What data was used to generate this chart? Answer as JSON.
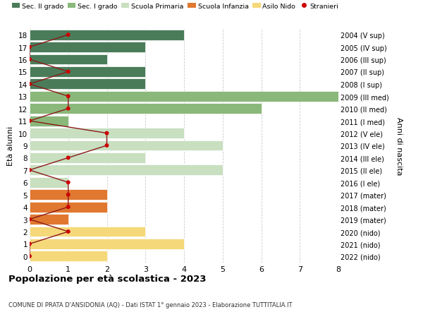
{
  "ages": [
    18,
    17,
    16,
    15,
    14,
    13,
    12,
    11,
    10,
    9,
    8,
    7,
    6,
    5,
    4,
    3,
    2,
    1,
    0
  ],
  "right_labels": [
    "2004 (V sup)",
    "2005 (IV sup)",
    "2006 (III sup)",
    "2007 (II sup)",
    "2008 (I sup)",
    "2009 (III med)",
    "2010 (II med)",
    "2011 (I med)",
    "2012 (V ele)",
    "2013 (IV ele)",
    "2014 (III ele)",
    "2015 (II ele)",
    "2016 (I ele)",
    "2017 (mater)",
    "2018 (mater)",
    "2019 (mater)",
    "2020 (nido)",
    "2021 (nido)",
    "2022 (nido)"
  ],
  "bar_values": [
    4,
    3,
    2,
    3,
    3,
    8,
    6,
    1,
    4,
    5,
    3,
    5,
    1,
    2,
    2,
    1,
    3,
    4,
    2
  ],
  "bar_colors": [
    "#4a7c59",
    "#4a7c59",
    "#4a7c59",
    "#4a7c59",
    "#4a7c59",
    "#8ab87a",
    "#8ab87a",
    "#8ab87a",
    "#c8dfc0",
    "#c8dfc0",
    "#c8dfc0",
    "#c8dfc0",
    "#c8dfc0",
    "#e07830",
    "#e07830",
    "#e07830",
    "#f5d87a",
    "#f5d87a",
    "#f5d87a"
  ],
  "stranieri_values": [
    1,
    0,
    0,
    1,
    0,
    1,
    1,
    0,
    2,
    2,
    1,
    0,
    1,
    1,
    1,
    0,
    1,
    0,
    0
  ],
  "title": "Popolazione per età scolastica - 2023",
  "subtitle": "COMUNE DI PRATA D'ANSIDONIA (AQ) - Dati ISTAT 1° gennaio 2023 - Elaborazione TUTTITALIA.IT",
  "ylabel_left": "Età alunni",
  "ylabel_right": "Anni di nascita",
  "xlim": [
    0,
    8
  ],
  "ylim_min": -0.5,
  "ylim_max": 18.5,
  "legend_labels": [
    "Sec. II grado",
    "Sec. I grado",
    "Scuola Primaria",
    "Scuola Infanzia",
    "Asilo Nido",
    "Stranieri"
  ],
  "legend_colors": [
    "#4a7c59",
    "#8ab87a",
    "#c8dfc0",
    "#e07830",
    "#f5d87a",
    "#cc0000"
  ],
  "stranieri_line_color": "#8b1a1a",
  "stranieri_dot_color": "#cc0000",
  "grid_color": "#cccccc",
  "bg_color": "#ffffff",
  "bar_height": 0.85
}
